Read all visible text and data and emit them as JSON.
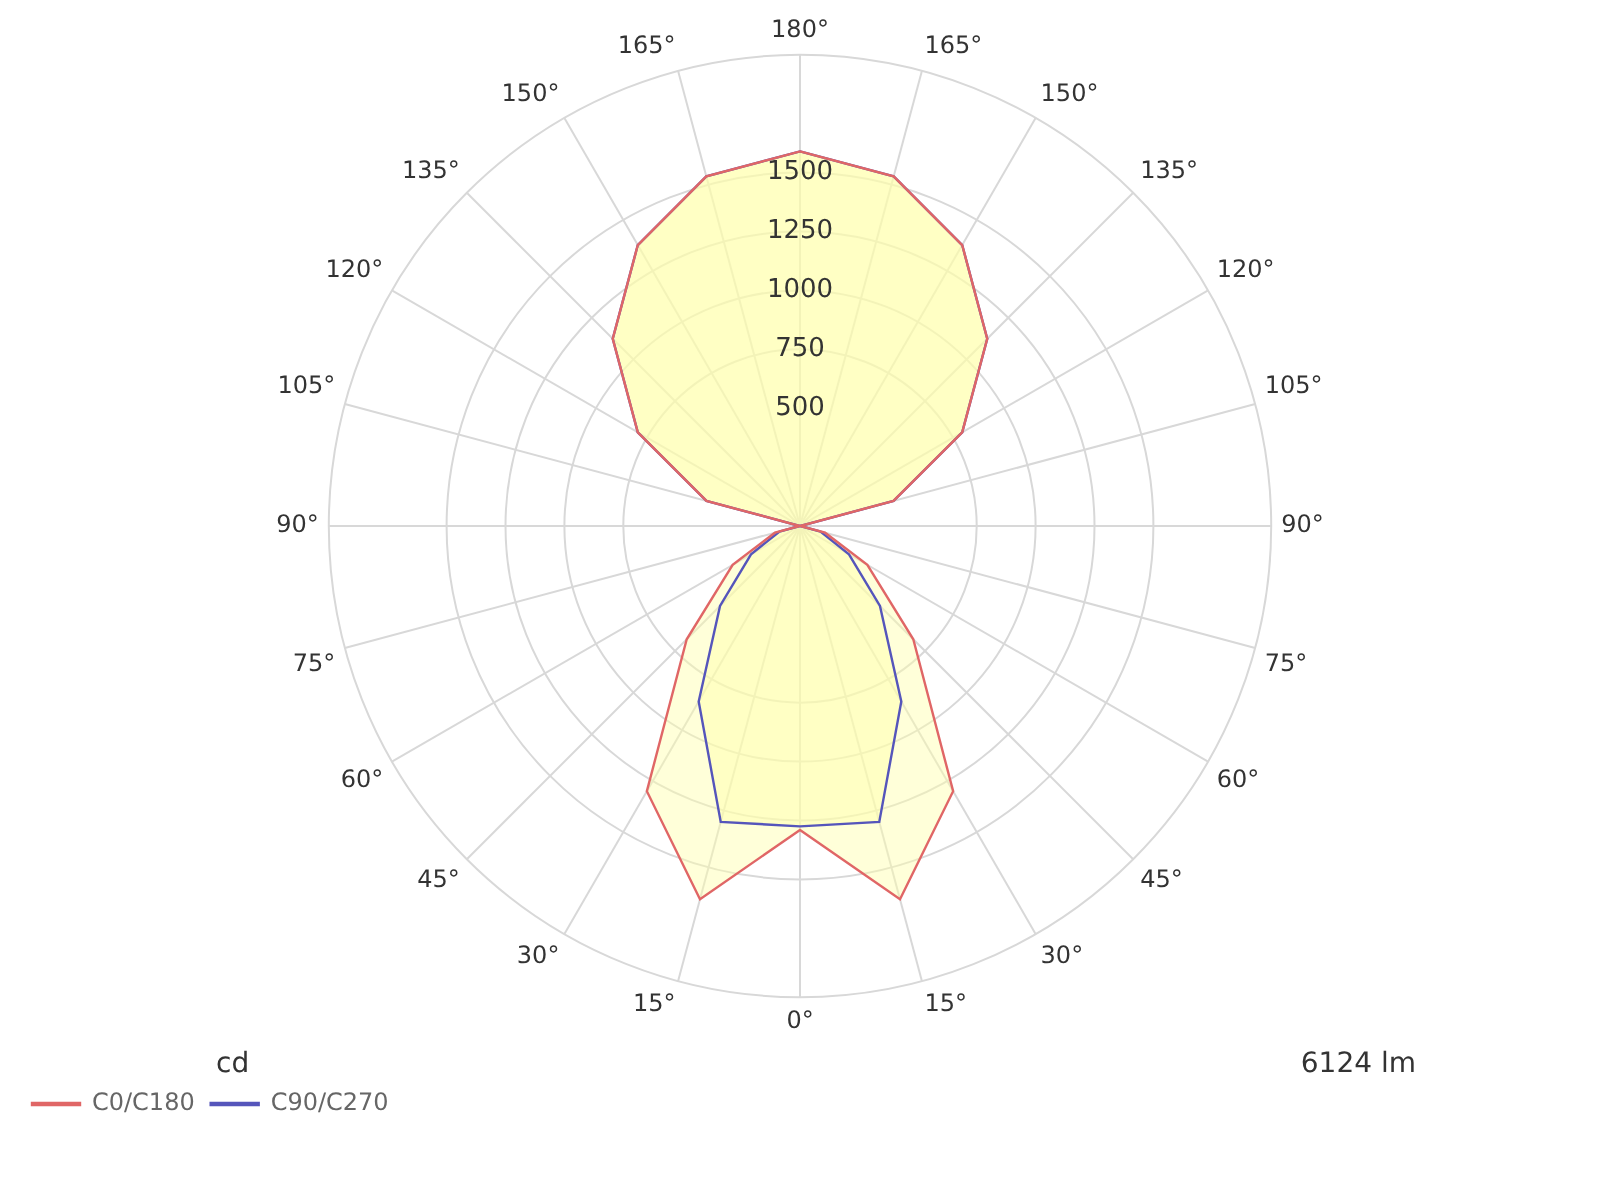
{
  "chart_data": {
    "type": "radar",
    "categories": [
      "180°",
      "165°",
      "150°",
      "135°",
      "120°",
      "105°",
      "90°",
      "75°",
      "60°",
      "45°",
      "30°",
      "15°",
      "0°",
      "15°",
      "30°",
      "45°",
      "60°",
      "75°",
      "90°",
      "105°",
      "120°",
      "135°",
      "150°",
      "165°"
    ],
    "series": [
      {
        "name": "C0/C180",
        "color": "#e06666",
        "values": [
          1590,
          1536,
          1377,
          1124,
          795,
          411,
          0,
          110,
          330,
          680,
          1300,
          1640,
          1290,
          1640,
          1300,
          680,
          330,
          110,
          0,
          411,
          795,
          1124,
          1377,
          1536
        ]
      },
      {
        "name": "C90/C270",
        "color": "#5555bb",
        "values": [
          1590,
          1536,
          1377,
          1124,
          795,
          411,
          0,
          90,
          240,
          480,
          860,
          1300,
          1275,
          1300,
          860,
          480,
          240,
          90,
          0,
          411,
          795,
          1124,
          1377,
          1536
        ]
      }
    ],
    "ylim": [
      0,
      2000
    ],
    "yticks": [
      500,
      750,
      1000,
      1250,
      1500
    ],
    "grid": true,
    "legend": "bottom left",
    "annotations": [
      "cd",
      "6124 lm"
    ]
  }
}
